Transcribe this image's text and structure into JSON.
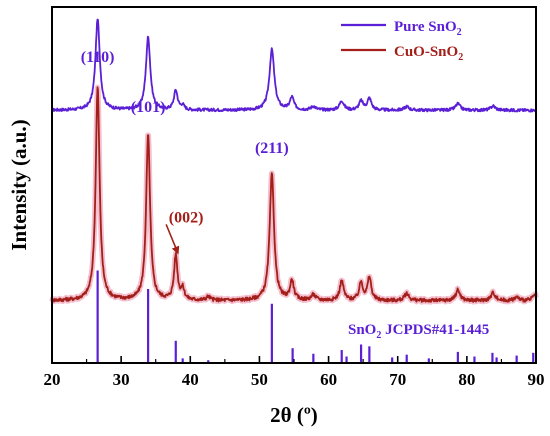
{
  "chart_data": {
    "type": "line",
    "title": "",
    "xlabel": "2θ (º)",
    "ylabel": "Intensity (a.u.)",
    "xlim": [
      20,
      90
    ],
    "xticks": [
      "20",
      "30",
      "40",
      "50",
      "60",
      "70",
      "80",
      "90"
    ],
    "ylim": [
      0,
      10
    ],
    "yticks_shown": false,
    "grid": false,
    "legend_position": "top-right",
    "colors": {
      "pure": "#5b1fd6",
      "cuo": "#a3201a",
      "cuo_glow": "#f2b4c6",
      "reference": "#5b1fd6",
      "annotation_purple": "#5b1fd6",
      "annotation_red": "#a3201a"
    },
    "legend": [
      {
        "key": "pure",
        "label_main": "Pure SnO",
        "label_sub": "2"
      },
      {
        "key": "cuo",
        "label_main": "CuO-SnO",
        "label_sub": "2"
      }
    ],
    "series": [
      {
        "key": "pure",
        "baseline": 7.1,
        "noise": 0.04,
        "peaks": [
          {
            "pos": 26.6,
            "height": 2.55,
            "width": 0.38
          },
          {
            "pos": 33.9,
            "height": 2.05,
            "width": 0.38
          },
          {
            "pos": 37.9,
            "height": 0.55,
            "width": 0.32
          },
          {
            "pos": 38.9,
            "height": 0.12,
            "width": 0.3
          },
          {
            "pos": 51.8,
            "height": 1.7,
            "width": 0.42
          },
          {
            "pos": 54.7,
            "height": 0.35,
            "width": 0.35
          },
          {
            "pos": 57.8,
            "height": 0.1,
            "width": 0.4
          },
          {
            "pos": 61.9,
            "height": 0.26,
            "width": 0.38
          },
          {
            "pos": 64.7,
            "height": 0.25,
            "width": 0.35
          },
          {
            "pos": 65.9,
            "height": 0.33,
            "width": 0.35
          },
          {
            "pos": 71.3,
            "height": 0.1,
            "width": 0.4
          },
          {
            "pos": 78.7,
            "height": 0.18,
            "width": 0.4
          },
          {
            "pos": 83.8,
            "height": 0.12,
            "width": 0.4
          }
        ]
      },
      {
        "key": "cuo",
        "baseline": 1.75,
        "noise": 0.05,
        "peaks": [
          {
            "pos": 26.6,
            "height": 6.0,
            "width": 0.34
          },
          {
            "pos": 33.9,
            "height": 4.65,
            "width": 0.34
          },
          {
            "pos": 37.9,
            "height": 1.25,
            "width": 0.3
          },
          {
            "pos": 38.9,
            "height": 0.3,
            "width": 0.3
          },
          {
            "pos": 42.6,
            "height": 0.1,
            "width": 0.35
          },
          {
            "pos": 51.8,
            "height": 3.55,
            "width": 0.38
          },
          {
            "pos": 54.7,
            "height": 0.55,
            "width": 0.32
          },
          {
            "pos": 57.8,
            "height": 0.15,
            "width": 0.4
          },
          {
            "pos": 61.9,
            "height": 0.55,
            "width": 0.34
          },
          {
            "pos": 64.7,
            "height": 0.5,
            "width": 0.32
          },
          {
            "pos": 65.9,
            "height": 0.65,
            "width": 0.32
          },
          {
            "pos": 71.3,
            "height": 0.2,
            "width": 0.38
          },
          {
            "pos": 78.7,
            "height": 0.3,
            "width": 0.38
          },
          {
            "pos": 83.8,
            "height": 0.22,
            "width": 0.38
          },
          {
            "pos": 87.2,
            "height": 0.1,
            "width": 0.38
          },
          {
            "pos": 89.8,
            "height": 0.15,
            "width": 0.38
          }
        ]
      }
    ],
    "reference": {
      "label_main": "SnO",
      "label_sub": "2",
      "label_rest": "  JCPDS#41-1445",
      "lines": [
        {
          "pos": 26.6,
          "height": 1.0
        },
        {
          "pos": 33.9,
          "height": 0.8
        },
        {
          "pos": 37.9,
          "height": 0.24
        },
        {
          "pos": 38.9,
          "height": 0.05
        },
        {
          "pos": 42.6,
          "height": 0.03
        },
        {
          "pos": 51.8,
          "height": 0.64
        },
        {
          "pos": 54.8,
          "height": 0.16
        },
        {
          "pos": 57.8,
          "height": 0.1
        },
        {
          "pos": 61.9,
          "height": 0.14
        },
        {
          "pos": 62.6,
          "height": 0.07
        },
        {
          "pos": 64.7,
          "height": 0.2
        },
        {
          "pos": 65.9,
          "height": 0.18
        },
        {
          "pos": 69.2,
          "height": 0.06
        },
        {
          "pos": 71.3,
          "height": 0.09
        },
        {
          "pos": 74.5,
          "height": 0.05
        },
        {
          "pos": 78.7,
          "height": 0.12
        },
        {
          "pos": 81.1,
          "height": 0.07
        },
        {
          "pos": 83.7,
          "height": 0.11
        },
        {
          "pos": 84.3,
          "height": 0.06
        },
        {
          "pos": 87.2,
          "height": 0.08
        },
        {
          "pos": 89.6,
          "height": 0.11
        }
      ]
    },
    "annotations": [
      {
        "text": "(110)",
        "x": 26.6,
        "y": 8.45,
        "color": "annotation_purple"
      },
      {
        "text": "(101)",
        "x": 33.9,
        "y": 7.05,
        "color": "annotation_purple"
      },
      {
        "text": "(211)",
        "x": 51.8,
        "y": 5.9,
        "color": "annotation_purple"
      },
      {
        "text": "(002)",
        "x": 39.4,
        "y": 3.95,
        "color": "annotation_red",
        "arrow_to_x": 37.9,
        "arrow_to_y": 3.1
      }
    ]
  }
}
